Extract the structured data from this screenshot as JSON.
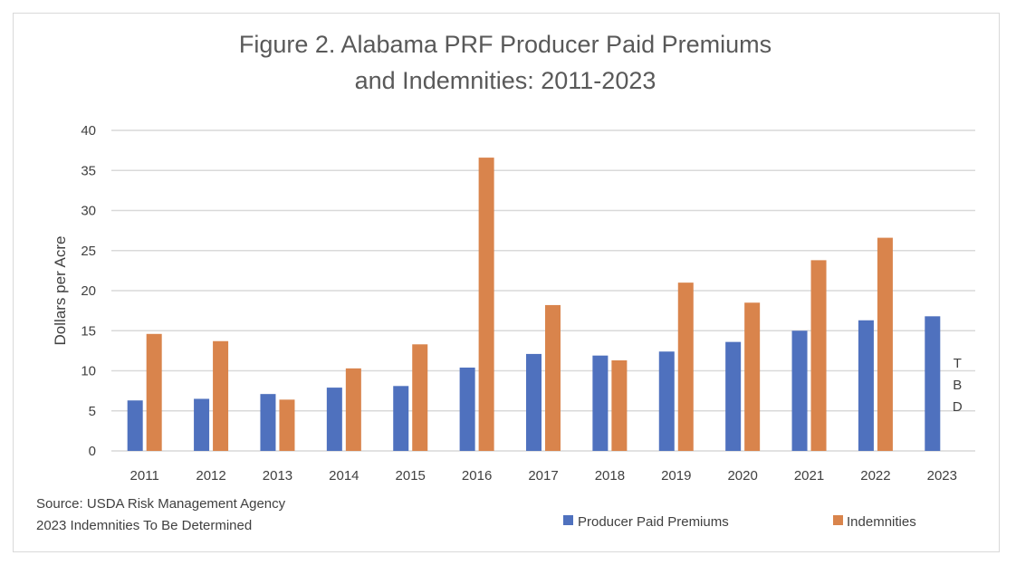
{
  "chart_data": {
    "type": "bar",
    "title": [
      "Figure 2. Alabama PRF Producer Paid Premiums",
      "and Indemnities: 2011-2023"
    ],
    "xlabel": "",
    "ylabel": "Dollars per Acre",
    "ylim": [
      0,
      40
    ],
    "yticks": [
      0,
      5,
      10,
      15,
      20,
      25,
      30,
      35,
      40
    ],
    "grid": true,
    "legend_placement": "bottom-right",
    "categories": [
      "2011",
      "2012",
      "2013",
      "2014",
      "2015",
      "2016",
      "2017",
      "2018",
      "2019",
      "2020",
      "2021",
      "2022",
      "2023"
    ],
    "series": [
      {
        "name": "Producer Paid Premiums",
        "color": "#4f71be",
        "values": [
          6.3,
          6.5,
          7.1,
          7.9,
          8.1,
          10.4,
          12.1,
          11.9,
          12.4,
          13.6,
          15.0,
          16.3,
          16.8
        ]
      },
      {
        "name": "Indemnities",
        "color": "#d9844c",
        "values": [
          14.6,
          13.7,
          6.4,
          10.3,
          13.3,
          36.6,
          18.2,
          11.3,
          21.0,
          18.5,
          23.8,
          26.6,
          null
        ]
      }
    ],
    "annotations": {
      "tbd_letters": [
        "T",
        "B",
        "D"
      ]
    },
    "source_notes": [
      "Source: USDA Risk Management Agency",
      "2023 Indemnities To Be Determined"
    ]
  }
}
